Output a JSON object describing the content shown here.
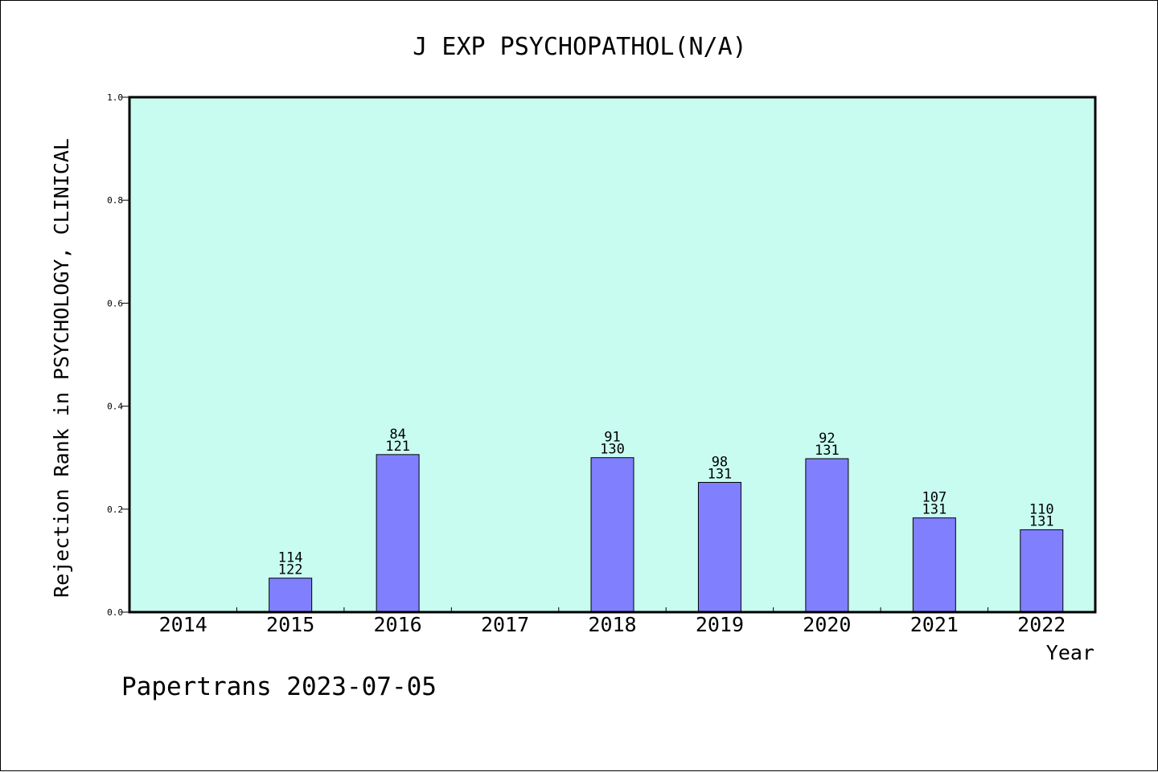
{
  "chart_data": {
    "type": "bar",
    "title": "J EXP PSYCHOPATHOL(N/A)",
    "xlabel": "Year",
    "ylabel": "Rejection Rank in PSYCHOLOGY, CLINICAL",
    "categories": [
      "2014",
      "2015",
      "2016",
      "2017",
      "2018",
      "2019",
      "2020",
      "2021",
      "2022"
    ],
    "values": [
      null,
      0.066,
      0.306,
      null,
      0.3,
      0.252,
      0.298,
      0.183,
      0.16
    ],
    "rank_labels": [
      "",
      "114",
      "84",
      "",
      "91",
      "98",
      "92",
      "107",
      "110"
    ],
    "total_labels": [
      "",
      "122",
      "121",
      "",
      "130",
      "131",
      "131",
      "131",
      "131"
    ],
    "ylim": [
      0,
      1.0
    ],
    "yticks": [
      "0.0",
      "0.2",
      "0.4",
      "0.6",
      "0.8",
      "1.0"
    ],
    "grid": false,
    "colors": {
      "plot_background": "#c8fcf0",
      "bar_fill": "#8080ff",
      "bar_stroke": "#000000"
    }
  },
  "footer": {
    "text": "Papertrans 2023-07-05"
  }
}
